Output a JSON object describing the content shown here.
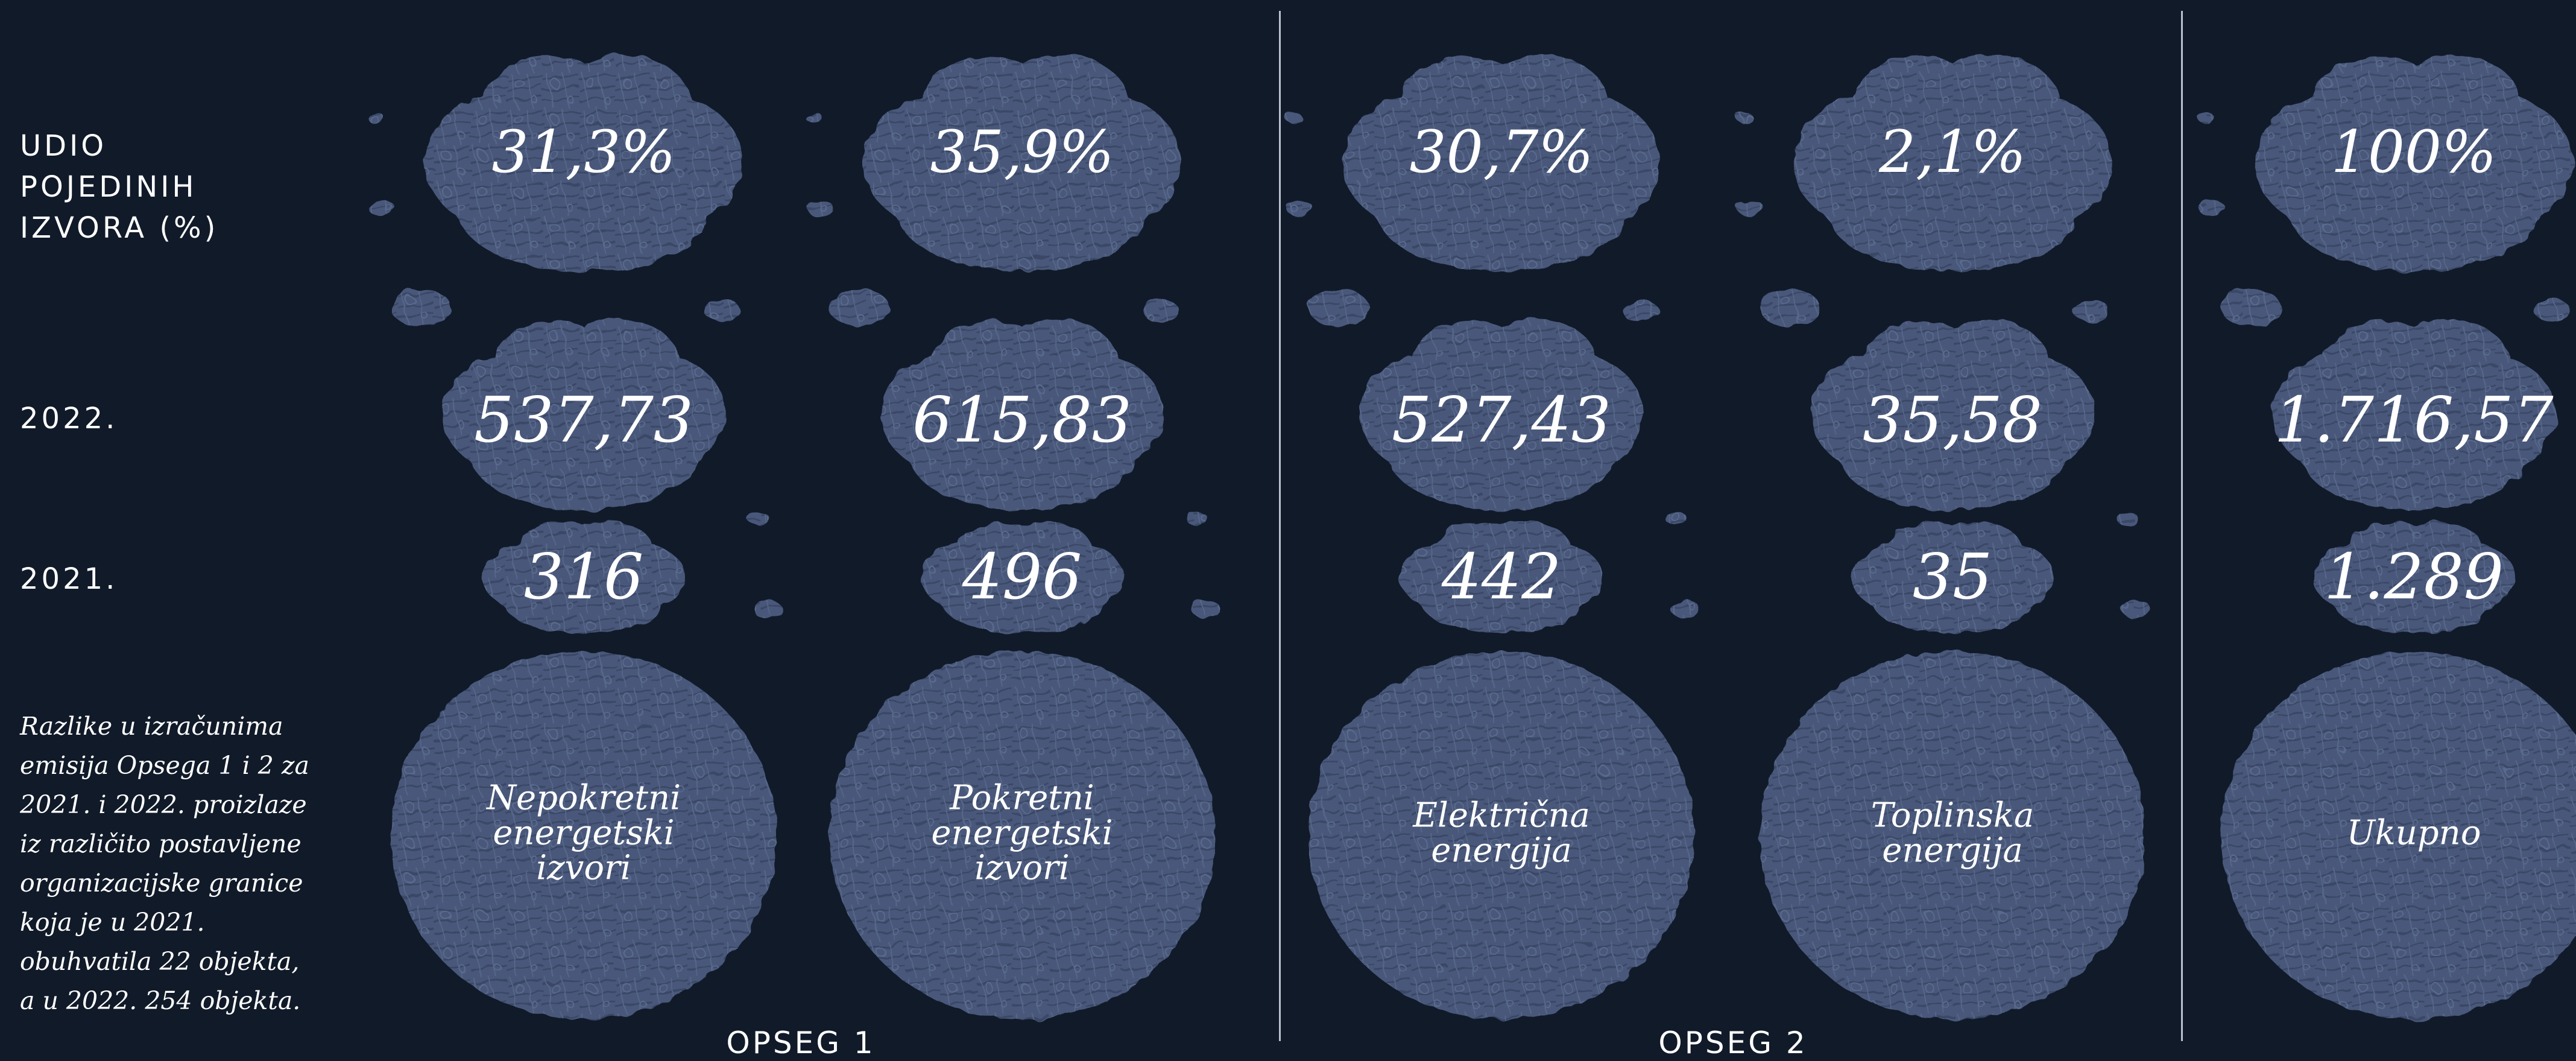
{
  "rows": {
    "share_label": [
      "UDIO",
      "POJEDINIH",
      "IZVORA (%)"
    ],
    "year_2022": "2022.",
    "year_2021": "2021."
  },
  "note": [
    "Razlike u izračunima",
    "emisija Opsega 1 i 2 za",
    "2021. i 2022. proizlaze",
    "iz različito postavljene",
    "organizacijske granice",
    "koja je u 2021.",
    "obuhvatila 22 objekta,",
    "a u 2022. 254 objekta."
  ],
  "groups": [
    "OPSEG 1",
    "OPSEG 2"
  ],
  "colors": {
    "background": "#111a29",
    "blob": "#48587a",
    "blob_dark": "#3a4766",
    "text": "#ffffff",
    "divider": "#b9c1cf"
  },
  "chart_data": {
    "type": "table",
    "columns": [
      {
        "name": [
          "Nepokretni",
          "energetski",
          "izvori"
        ],
        "group": "OPSEG 1",
        "share": "31,3%",
        "v2022": "537,73",
        "v2021": "316"
      },
      {
        "name": [
          "Pokretni",
          "energetski",
          "izvori"
        ],
        "group": "OPSEG 1",
        "share": "35,9%",
        "v2022": "615,83",
        "v2021": "496"
      },
      {
        "name": [
          "Električna",
          "energija"
        ],
        "group": "OPSEG 2",
        "share": "30,7%",
        "v2022": "527,43",
        "v2021": "442"
      },
      {
        "name": [
          "Toplinska",
          "energija"
        ],
        "group": "OPSEG 2",
        "share": "2,1%",
        "v2022": "35,58",
        "v2021": "35"
      },
      {
        "name": [
          "Ukupno"
        ],
        "group": "",
        "share": "100%",
        "v2022": "1.716,57",
        "v2021": "1.289"
      }
    ]
  }
}
